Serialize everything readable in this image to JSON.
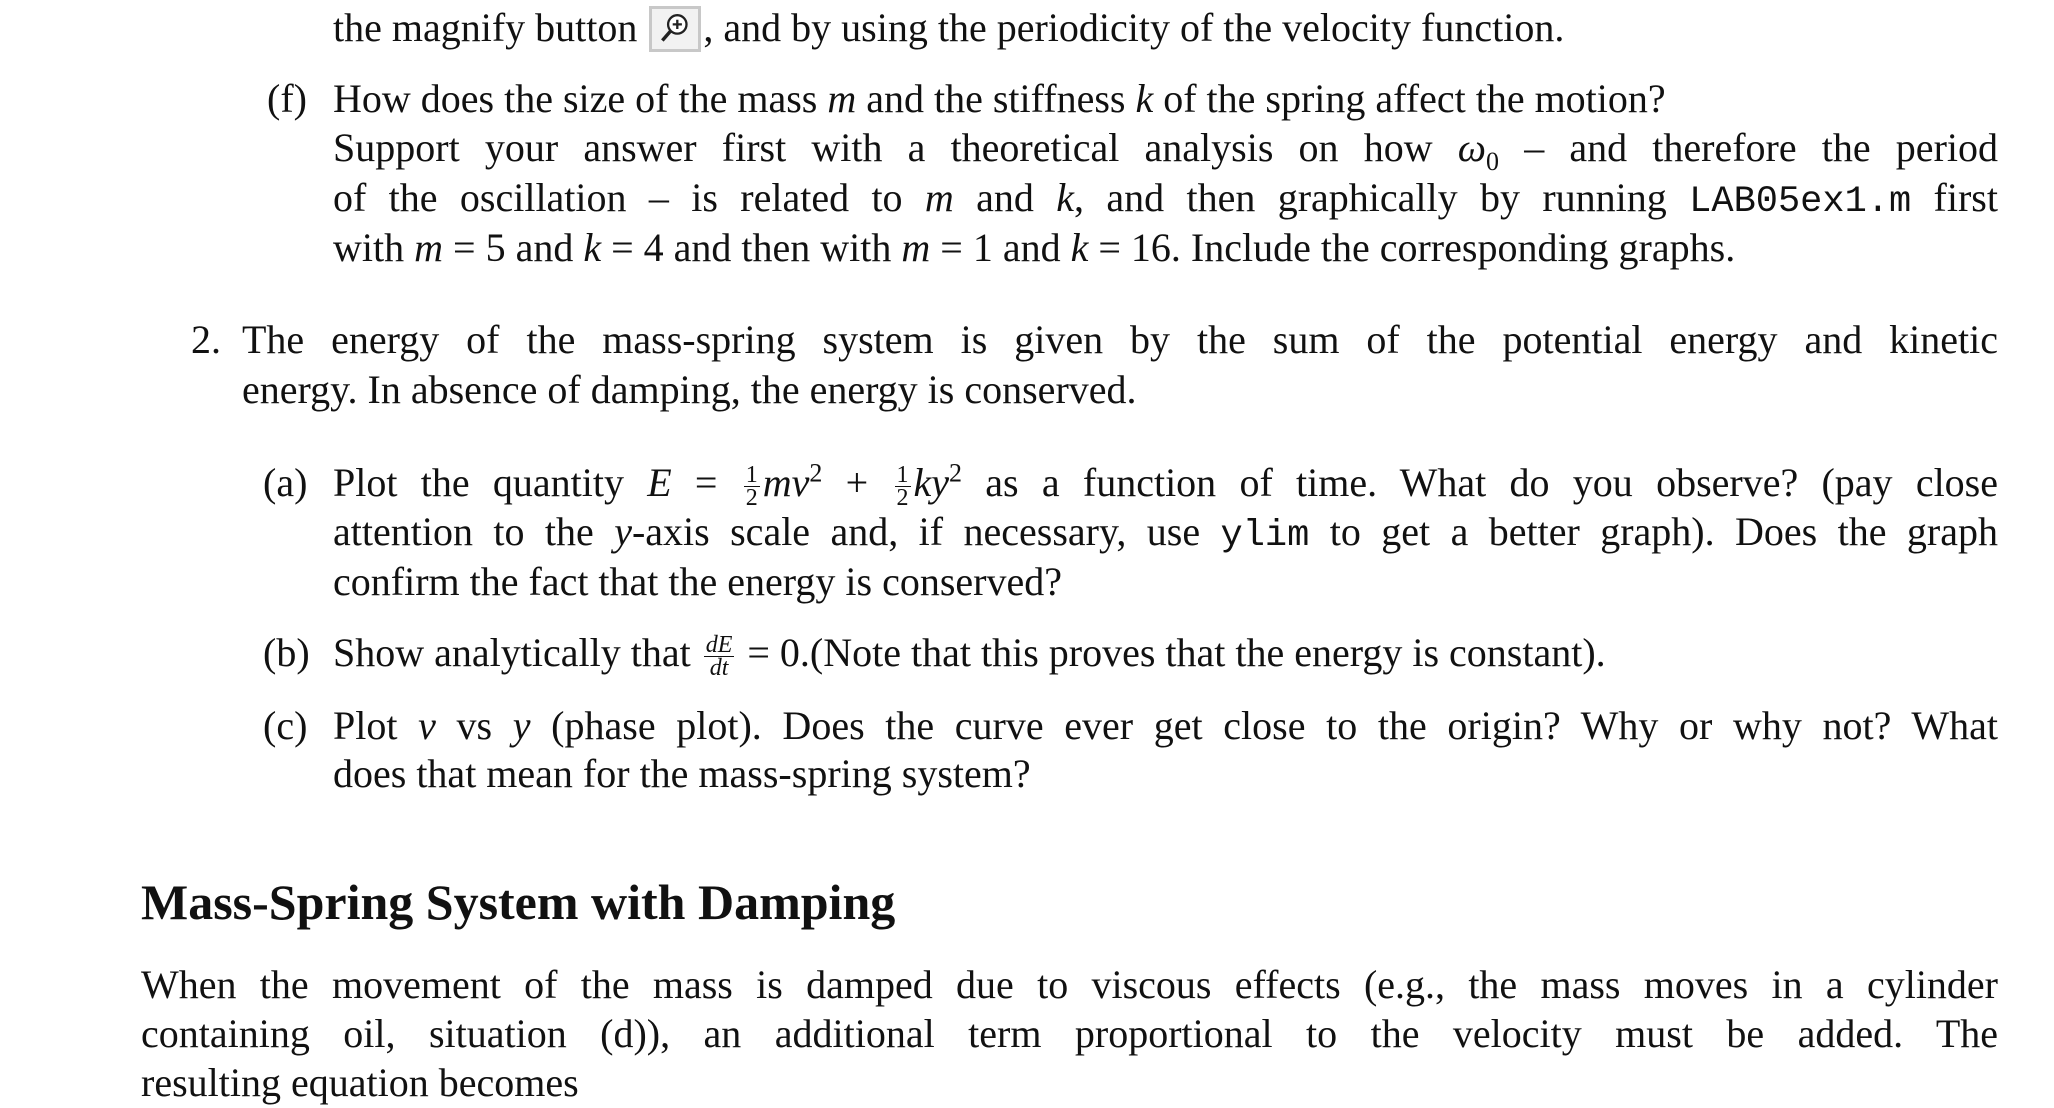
{
  "lines": [
    {
      "id": "l1",
      "label": "",
      "segs": [
        [
          "t",
          "the magnify button "
        ],
        [
          "icon",
          "magnify-button"
        ],
        [
          "t",
          ", and by using the periodicity of the velocity function."
        ]
      ]
    },
    {
      "id": "f1",
      "label": "(f)",
      "segs": [
        [
          "t",
          "How does the size of the mass "
        ],
        [
          "i",
          "m"
        ],
        [
          "t",
          " and the stiffness "
        ],
        [
          "i",
          "k"
        ],
        [
          "t",
          " of the spring affect the motion?"
        ]
      ]
    },
    {
      "id": "f2",
      "label": "",
      "segs": [
        [
          "t",
          "Support your answer first with a theoretical analysis on how "
        ],
        [
          "i",
          "ω"
        ],
        [
          "sub",
          "0"
        ],
        [
          "t",
          " – and therefore the period"
        ]
      ]
    },
    {
      "id": "f3",
      "label": "",
      "segs": [
        [
          "t",
          "of the oscillation – is related to "
        ],
        [
          "i",
          "m"
        ],
        [
          "t",
          " and "
        ],
        [
          "i",
          "k"
        ],
        [
          "t",
          ", and then graphically by running "
        ],
        [
          "c",
          "LAB05ex1.m"
        ],
        [
          "t",
          " first"
        ]
      ]
    },
    {
      "id": "f4",
      "label": "",
      "segs": [
        [
          "t",
          "with "
        ],
        [
          "i",
          "m"
        ],
        [
          "t",
          " = 5 and "
        ],
        [
          "i",
          "k"
        ],
        [
          "t",
          " = 4 and then with "
        ],
        [
          "i",
          "m"
        ],
        [
          "t",
          " = 1 and "
        ],
        [
          "i",
          "k"
        ],
        [
          "t",
          " = 16. Include the corresponding graphs."
        ]
      ]
    },
    {
      "id": "q2a",
      "label": "2.",
      "segs": [
        [
          "t",
          "The energy of the mass-spring system is given by the sum of the potential energy and kinetic"
        ]
      ]
    },
    {
      "id": "q2b",
      "label": "",
      "segs": [
        [
          "t",
          "energy. In absence of damping, the energy is conserved."
        ]
      ]
    },
    {
      "id": "a1",
      "label": "(a)",
      "segs": [
        [
          "t",
          "Plot the quantity "
        ],
        [
          "i",
          "E"
        ],
        [
          "t",
          " = "
        ],
        [
          "f",
          "1",
          "2"
        ],
        [
          "i",
          "mv"
        ],
        [
          "s",
          "2"
        ],
        [
          "t",
          " + "
        ],
        [
          "f",
          "1",
          "2"
        ],
        [
          "i",
          "ky"
        ],
        [
          "s",
          "2"
        ],
        [
          "t",
          " as a function of time. What do you observe? (pay close"
        ]
      ]
    },
    {
      "id": "a2",
      "label": "",
      "segs": [
        [
          "t",
          "attention to the "
        ],
        [
          "i",
          "y"
        ],
        [
          "t",
          "-axis scale and, if necessary, use "
        ],
        [
          "c",
          "ylim"
        ],
        [
          "t",
          " to get a better graph). Does the graph"
        ]
      ]
    },
    {
      "id": "a3",
      "label": "",
      "segs": [
        [
          "t",
          "confirm the fact that the energy is conserved?"
        ]
      ]
    },
    {
      "id": "b1",
      "label": "(b)",
      "segs": [
        [
          "t",
          "Show analytically that "
        ],
        [
          "f",
          "dE",
          "dt"
        ],
        [
          "t",
          " = 0.(Note that this proves that the energy is constant)."
        ]
      ]
    },
    {
      "id": "c1",
      "label": "(c)",
      "segs": [
        [
          "t",
          "Plot "
        ],
        [
          "i",
          "v"
        ],
        [
          "t",
          " vs "
        ],
        [
          "i",
          "y"
        ],
        [
          "t",
          " (phase plot). Does the curve ever get close to the origin? Why or why not? What"
        ]
      ]
    },
    {
      "id": "c2",
      "label": "",
      "segs": [
        [
          "t",
          "does that mean for the mass-spring system?"
        ]
      ]
    },
    {
      "id": "p1",
      "label": "",
      "segs": [
        [
          "t",
          "When the movement of the mass is damped due to viscous effects (e.g., the mass moves in a cylinder"
        ]
      ]
    },
    {
      "id": "p2",
      "label": "",
      "segs": [
        [
          "t",
          "containing oil, situation (d)), an additional term proportional to the velocity must be added. The"
        ]
      ]
    },
    {
      "id": "p3",
      "label": "",
      "segs": [
        [
          "t",
          "resulting equation becomes"
        ]
      ]
    }
  ],
  "heading": "Mass-Spring System with Damping"
}
